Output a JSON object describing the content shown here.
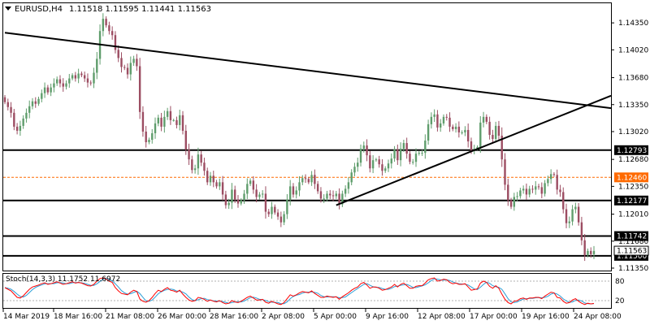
{
  "header": {
    "title": "EURUSD,H4",
    "ohlc": "1.11518 1.11595 1.11441 1.11563"
  },
  "indicator": {
    "label": "Stoch(14,3,3) 11.1752 11.6972",
    "levels": [
      "80",
      "20"
    ]
  },
  "colors": {
    "bull": "#5f9d6c",
    "bear": "#9c4d62",
    "main_line": "#ff0000",
    "signal_line": "#2c9ed6",
    "ask_line": "#ff6a00",
    "lines": "#000000"
  },
  "chart_data": {
    "type": "candlestick",
    "symbol": "EURUSD",
    "timeframe": "H4",
    "ylim": [
      1.1132,
      1.1459
    ],
    "y_ticks": [
      "1.14350",
      "1.14020",
      "1.13680",
      "1.13350",
      "1.13020",
      "1.12680",
      "1.12350",
      "1.12010",
      "1.11680",
      "1.11350"
    ],
    "x_ticks": [
      "14 Mar 2019",
      "18 Mar 16:00",
      "21 Mar 08:00",
      "26 Mar 00:00",
      "28 Mar 16:00",
      "2 Apr 08:00",
      "5 Apr 00:00",
      "9 Apr 16:00",
      "12 Apr 08:00",
      "17 Apr 00:00",
      "19 Apr 16:00",
      "24 Apr 08:00"
    ],
    "close": [
      1.1338,
      1.1332,
      1.1325,
      1.1308,
      1.1303,
      1.1309,
      1.1318,
      1.1325,
      1.1333,
      1.1339,
      1.1336,
      1.1342,
      1.1349,
      1.1356,
      1.135,
      1.1356,
      1.1361,
      1.1366,
      1.1361,
      1.1357,
      1.1361,
      1.1367,
      1.1371,
      1.1367,
      1.1373,
      1.1371,
      1.1367,
      1.1362,
      1.1361,
      1.1374,
      1.1391,
      1.1425,
      1.144,
      1.1432,
      1.1425,
      1.142,
      1.1402,
      1.1392,
      1.1381,
      1.138,
      1.1372,
      1.1386,
      1.1391,
      1.1382,
      1.1326,
      1.1302,
      1.1289,
      1.1292,
      1.13,
      1.1312,
      1.1319,
      1.1308,
      1.132,
      1.1327,
      1.1316,
      1.1316,
      1.131,
      1.1322,
      1.1303,
      1.128,
      1.1268,
      1.1255,
      1.1257,
      1.1274,
      1.1264,
      1.1254,
      1.124,
      1.1248,
      1.124,
      1.1235,
      1.124,
      1.1225,
      1.1212,
      1.1215,
      1.1231,
      1.1219,
      1.1214,
      1.1218,
      1.1226,
      1.1238,
      1.1242,
      1.1231,
      1.1222,
      1.1225,
      1.1226,
      1.1204,
      1.1201,
      1.121,
      1.1203,
      1.1198,
      1.1191,
      1.1201,
      1.1219,
      1.1235,
      1.1225,
      1.123,
      1.124,
      1.1245,
      1.1244,
      1.124,
      1.1249,
      1.1238,
      1.1229,
      1.122,
      1.122,
      1.1226,
      1.1224,
      1.1223,
      1.1226,
      1.1213,
      1.1226,
      1.1232,
      1.124,
      1.1252,
      1.1259,
      1.1264,
      1.1281,
      1.1285,
      1.1273,
      1.1257,
      1.1267,
      1.1268,
      1.1262,
      1.1254,
      1.1257,
      1.1263,
      1.1269,
      1.128,
      1.1267,
      1.1281,
      1.1288,
      1.1275,
      1.1265,
      1.1265,
      1.1275,
      1.1276,
      1.1276,
      1.1291,
      1.1311,
      1.132,
      1.1323,
      1.1307,
      1.1312,
      1.132,
      1.1319,
      1.1308,
      1.1305,
      1.1308,
      1.1301,
      1.1301,
      1.1304,
      1.129,
      1.1279,
      1.1281,
      1.1283,
      1.1313,
      1.132,
      1.1314,
      1.1298,
      1.1293,
      1.1309,
      1.1297,
      1.1268,
      1.1237,
      1.1218,
      1.121,
      1.1222,
      1.1223,
      1.123,
      1.1232,
      1.1225,
      1.1232,
      1.1231,
      1.1235,
      1.1234,
      1.1226,
      1.1239,
      1.1244,
      1.125,
      1.1249,
      1.1231,
      1.1228,
      1.1207,
      1.119,
      1.1192,
      1.1207,
      1.121,
      1.1191,
      1.1169,
      1.1151,
      1.1156,
      1.1152,
      1.1156
    ],
    "levels": [
      {
        "label": "1.12793",
        "value": 1.12793
      },
      {
        "label": "1.12460",
        "value": 1.1246,
        "style": "dashed"
      },
      {
        "label": "1.12177",
        "value": 1.12177
      },
      {
        "label": "1.11742",
        "value": 1.11742
      },
      {
        "label": "1.11500",
        "value": 1.115
      }
    ],
    "trendlines": [
      {
        "name": "falling-resistance",
        "from": [
          0,
          1.1423
        ],
        "to": [
          199,
          1.133
        ]
      },
      {
        "name": "rising-support",
        "from": [
          108,
          1.1212
        ],
        "to": [
          199,
          1.1348
        ]
      }
    ],
    "current_price": {
      "label": "1.11563",
      "value": 1.11563
    },
    "stoch_main": [
      60,
      55,
      50,
      40,
      30,
      28,
      35,
      45,
      55,
      62,
      65,
      68,
      72,
      75,
      70,
      72,
      75,
      78,
      74,
      70,
      72,
      75,
      78,
      74,
      76,
      74,
      70,
      66,
      65,
      70,
      80,
      88,
      90,
      86,
      80,
      76,
      60,
      50,
      42,
      40,
      38,
      46,
      52,
      48,
      25,
      18,
      15,
      20,
      30,
      42,
      52,
      48,
      55,
      60,
      52,
      50,
      46,
      52,
      40,
      30,
      22,
      18,
      20,
      30,
      28,
      24,
      18,
      22,
      18,
      16,
      20,
      14,
      10,
      12,
      20,
      16,
      14,
      18,
      24,
      30,
      34,
      28,
      22,
      22,
      24,
      15,
      12,
      18,
      14,
      10,
      8,
      14,
      26,
      38,
      34,
      38,
      44,
      48,
      46,
      44,
      50,
      42,
      36,
      30,
      30,
      34,
      32,
      30,
      32,
      24,
      32,
      38,
      44,
      52,
      58,
      62,
      72,
      76,
      68,
      58,
      62,
      62,
      58,
      52,
      54,
      58,
      62,
      70,
      62,
      70,
      74,
      66,
      58,
      58,
      64,
      66,
      66,
      74,
      84,
      88,
      90,
      80,
      82,
      86,
      84,
      76,
      72,
      74,
      70,
      70,
      72,
      62,
      52,
      54,
      56,
      74,
      80,
      76,
      64,
      58,
      66,
      58,
      40,
      24,
      14,
      10,
      18,
      20,
      26,
      28,
      24,
      28,
      28,
      30,
      30,
      26,
      34,
      40,
      46,
      44,
      30,
      28,
      18,
      12,
      14,
      22,
      26,
      18,
      12,
      8,
      12,
      10,
      11.2
    ]
  }
}
